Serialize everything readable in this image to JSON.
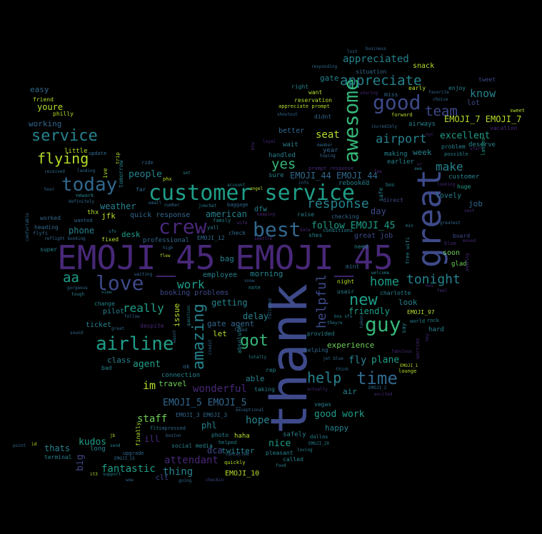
{
  "palette": {
    "background": "#000000",
    "purple": "#482878",
    "indigo": "#3e4a89",
    "blue": "#31688e",
    "teal": "#26828e",
    "cyan": "#1f9e89",
    "green": "#35b779",
    "lime": "#6ece58",
    "yellow": "#b5de2b"
  },
  "words": [
    {
      "text": "EMOJI_45 EMOJI_45"
    },
    {
      "text": "thank"
    },
    {
      "text": "great"
    },
    {
      "text": "customer service"
    },
    {
      "text": "awesome"
    },
    {
      "text": "crew"
    },
    {
      "text": "best"
    },
    {
      "text": "love"
    },
    {
      "text": "today"
    },
    {
      "text": "airline"
    },
    {
      "text": "guy"
    },
    {
      "text": "good"
    },
    {
      "text": "service"
    },
    {
      "text": "time"
    },
    {
      "text": "amazing"
    },
    {
      "text": "flying"
    },
    {
      "text": "got"
    },
    {
      "text": "helpful"
    },
    {
      "text": "new"
    },
    {
      "text": "help"
    },
    {
      "text": "response"
    },
    {
      "text": "appreciate"
    },
    {
      "text": "team"
    },
    {
      "text": "tonight"
    },
    {
      "text": "yes"
    },
    {
      "text": "home"
    },
    {
      "text": "airport"
    },
    {
      "text": "aa"
    },
    {
      "text": "work"
    },
    {
      "text": "really"
    },
    {
      "text": "excellent"
    },
    {
      "text": "make"
    },
    {
      "text": "know"
    },
    {
      "text": "fantastic"
    },
    {
      "text": "appreciated"
    },
    {
      "text": "follow EMOJI_45"
    },
    {
      "text": "EMOJI_44 EMOJI_44"
    },
    {
      "text": "EMOJI_7 EMOJI_7"
    },
    {
      "text": "EMOJI_5 EMOJI_5"
    },
    {
      "text": "attendant"
    },
    {
      "text": "wonderful"
    },
    {
      "text": "staff"
    },
    {
      "text": "thing"
    },
    {
      "text": "im"
    },
    {
      "text": "agent"
    },
    {
      "text": "seat"
    },
    {
      "text": "people"
    },
    {
      "text": "weather"
    },
    {
      "text": "american"
    },
    {
      "text": "friendly"
    },
    {
      "text": "fly"
    },
    {
      "text": "plane"
    },
    {
      "text": "hope"
    },
    {
      "text": "nice"
    },
    {
      "text": "kudos"
    },
    {
      "text": "good work"
    },
    {
      "text": "experience"
    },
    {
      "text": "phone"
    },
    {
      "text": "desk"
    },
    {
      "text": "class"
    },
    {
      "text": "travel"
    },
    {
      "text": "delay"
    },
    {
      "text": "morning"
    },
    {
      "text": "getting"
    },
    {
      "text": "gate agent"
    },
    {
      "text": "job"
    },
    {
      "text": "day"
    },
    {
      "text": "easy"
    },
    {
      "text": "youre"
    },
    {
      "text": "working"
    },
    {
      "text": "jfk"
    },
    {
      "text": "thats"
    },
    {
      "text": "phl"
    },
    {
      "text": "twitter"
    },
    {
      "text": "dca"
    },
    {
      "text": "big"
    },
    {
      "text": "ill"
    },
    {
      "text": "issue"
    },
    {
      "text": "ticket"
    },
    {
      "text": "let"
    },
    {
      "text": "able"
    },
    {
      "text": "air"
    },
    {
      "text": "happy"
    },
    {
      "text": "look"
    },
    {
      "text": "week"
    },
    {
      "text": "gate"
    },
    {
      "text": "snack"
    },
    {
      "text": "lovely"
    },
    {
      "text": "soon"
    },
    {
      "text": "dfw"
    },
    {
      "text": "bag"
    },
    {
      "text": "employee"
    },
    {
      "text": "pilot"
    },
    {
      "text": "little"
    },
    {
      "text": "quick response"
    },
    {
      "text": "professional"
    },
    {
      "text": "booking problems"
    },
    {
      "text": "connection"
    },
    {
      "text": "clt"
    },
    {
      "text": "great job"
    },
    {
      "text": "making"
    },
    {
      "text": "earlier"
    },
    {
      "text": "airways"
    },
    {
      "text": "deserve"
    },
    {
      "text": "customer"
    },
    {
      "text": "rebooked"
    },
    {
      "text": "wait"
    },
    {
      "text": "handled"
    },
    {
      "text": "sure"
    },
    {
      "text": "year"
    },
    {
      "text": "thx"
    },
    {
      "text": "rep"
    },
    {
      "text": "taking"
    },
    {
      "text": "safely"
    },
    {
      "text": "long"
    },
    {
      "text": "social media"
    },
    {
      "text": "EMOJI_10"
    },
    {
      "text": "EMOJI_3 EMOJI_3"
    },
    {
      "text": "EMOJI_97"
    },
    {
      "text": "EMOJI_12"
    },
    {
      "text": "tomorrow"
    },
    {
      "text": "vegas"
    },
    {
      "text": "charlotte"
    },
    {
      "text": "night"
    },
    {
      "text": "usair"
    },
    {
      "text": "better"
    },
    {
      "text": "reservation"
    },
    {
      "text": "want"
    },
    {
      "text": "right"
    },
    {
      "text": "responding"
    },
    {
      "text": "lost"
    },
    {
      "text": "business"
    },
    {
      "text": "situation"
    },
    {
      "text": "early"
    },
    {
      "text": "miss"
    },
    {
      "text": "enjoy"
    },
    {
      "text": "lot"
    },
    {
      "text": "tweet"
    },
    {
      "text": "sweet"
    },
    {
      "text": "vacation"
    },
    {
      "text": "forward"
    },
    {
      "text": "appreciate prompt"
    },
    {
      "text": "didnt"
    },
    {
      "text": "shoutout"
    },
    {
      "text": "favorite"
    },
    {
      "text": "problem"
    },
    {
      "text": "possible"
    },
    {
      "text": "start"
    },
    {
      "text": "landed"
    },
    {
      "text": "huge"
    },
    {
      "text": "sent"
    },
    {
      "text": "greatest"
    },
    {
      "text": "board"
    },
    {
      "text": "glad"
    },
    {
      "text": "hard"
    },
    {
      "text": "world"
    },
    {
      "text": "lounge"
    },
    {
      "text": "EMOJI_1"
    },
    {
      "text": "EMOJI_2"
    },
    {
      "text": "pleasant"
    },
    {
      "text": "called"
    },
    {
      "text": "food"
    },
    {
      "text": "loving"
    },
    {
      "text": "dallas"
    },
    {
      "text": "EMOJI_29"
    },
    {
      "text": "photo"
    },
    {
      "text": "haha"
    },
    {
      "text": "helped"
    },
    {
      "text": "quickly"
    },
    {
      "text": "cancelled"
    },
    {
      "text": "checkin"
    },
    {
      "text": "going"
    },
    {
      "text": "wow"
    },
    {
      "text": "support"
    },
    {
      "text": "upgrade"
    },
    {
      "text": "send"
    },
    {
      "text": "terminal"
    },
    {
      "text": "point"
    },
    {
      "text": "flt"
    },
    {
      "text": "ok"
    },
    {
      "text": "bad"
    },
    {
      "text": "change"
    },
    {
      "text": "view"
    },
    {
      "text": "tough"
    },
    {
      "text": "gorgeous"
    },
    {
      "text": "waiting"
    },
    {
      "text": "flew"
    },
    {
      "text": "super"
    },
    {
      "text": "worked"
    },
    {
      "text": "heading"
    },
    {
      "text": "flyfi"
    },
    {
      "text": "reflight booking"
    },
    {
      "text": "received"
    },
    {
      "text": "landing"
    },
    {
      "text": "hour"
    },
    {
      "text": "newark"
    },
    {
      "text": "definitely"
    },
    {
      "text": "wanted"
    },
    {
      "text": "ride"
    },
    {
      "text": "far"
    },
    {
      "text": "phx"
    },
    {
      "text": "set"
    },
    {
      "text": "update"
    },
    {
      "text": "family"
    },
    {
      "text": "yall"
    },
    {
      "text": "check"
    },
    {
      "text": "note"
    },
    {
      "text": "baggage"
    },
    {
      "text": "raise"
    },
    {
      "text": "checking"
    },
    {
      "text": "conditions"
    },
    {
      "text": "shes"
    },
    {
      "text": "need"
    },
    {
      "text": "mint"
    },
    {
      "text": "welcome"
    },
    {
      "text": "bos sfo"
    },
    {
      "text": "theyre"
    },
    {
      "text": "provided"
    },
    {
      "text": "helping"
    },
    {
      "text": "jet blue"
    },
    {
      "text": "think"
    },
    {
      "text": "exceptional"
    },
    {
      "text": "impressed"
    },
    {
      "text": "boston"
    },
    {
      "text": "follow"
    },
    {
      "text": "despite"
    },
    {
      "text": "great"
    },
    {
      "text": "sound"
    },
    {
      "text": "absolute"
    },
    {
      "text": "totally"
    },
    {
      "text": "loved"
    },
    {
      "text": "followed"
    },
    {
      "text": "credit"
    },
    {
      "text": "wasnt"
    },
    {
      "text": "fixed"
    },
    {
      "text": "EMOJI_15"
    },
    {
      "text": "info"
    },
    {
      "text": "prompt response"
    },
    {
      "text": "member"
    },
    {
      "text": "hoping"
    },
    {
      "text": "sharing"
    },
    {
      "text": "incredibly"
    },
    {
      "text": "direct"
    },
    {
      "text": "bos"
    },
    {
      "text": "safe"
    },
    {
      "text": "min"
    },
    {
      "text": "free wifi"
    },
    {
      "text": "hey"
    },
    {
      "text": "fabulous"
    },
    {
      "text": "worries"
    },
    {
      "text": "say"
    },
    {
      "text": "feel"
    },
    {
      "text": "hes"
    },
    {
      "text": "moved"
    },
    {
      "text": "amazing"
    },
    {
      "text": "blue"
    },
    {
      "text": "looking"
    },
    {
      "text": "choice"
    },
    {
      "text": "nyc"
    },
    {
      "text": "awe"
    },
    {
      "text": "fee"
    },
    {
      "text": "seattle"
    },
    {
      "text": "keeping"
    },
    {
      "text": "btw"
    },
    {
      "text": "loyal"
    },
    {
      "text": "wife"
    },
    {
      "text": "account"
    },
    {
      "text": "angel"
    },
    {
      "text": "number"
    },
    {
      "text": "high"
    },
    {
      "text": "email"
    },
    {
      "text": "jvmchat"
    },
    {
      "text": "sfo"
    },
    {
      "text": "comfortable"
    },
    {
      "text": "jb"
    },
    {
      "text": "rock"
    },
    {
      "text": "excited"
    },
    {
      "text": "friend"
    },
    {
      "text": "philly"
    },
    {
      "text": "trip"
    },
    {
      "text": "ive"
    },
    {
      "text": "finally"
    },
    {
      "text": "question"
    },
    {
      "text": "date"
    },
    {
      "text": "snow"
    },
    {
      "text": "ur"
    },
    {
      "text": "actually"
    },
    {
      "text": "it3"
    },
    {
      "text": "id"
    },
    {
      "text": "taken"
    }
  ]
}
